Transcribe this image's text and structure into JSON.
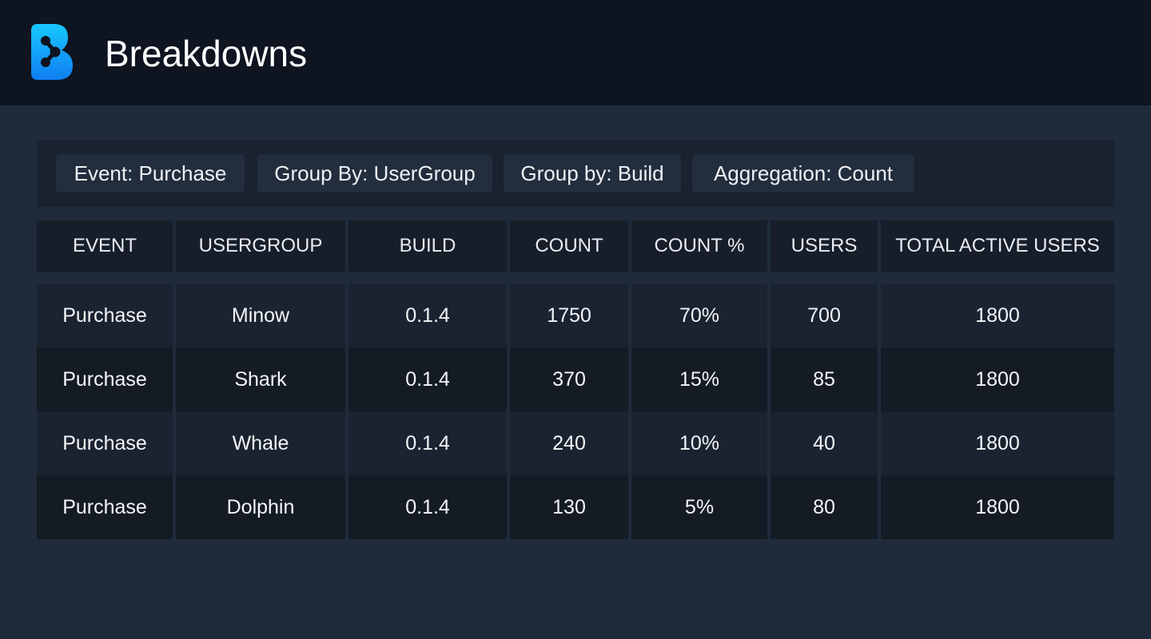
{
  "header": {
    "title": "Breakdowns",
    "logo_icon": "breakdowns-logo-icon",
    "brand_color": "#1aa7f5"
  },
  "filters": [
    {
      "label": "Event: Purchase"
    },
    {
      "label": "Group By: UserGroup"
    },
    {
      "label": "Group by: Build"
    },
    {
      "label": "Aggregation: Count"
    }
  ],
  "table": {
    "columns": [
      "EVENT",
      "USERGROUP",
      "BUILD",
      "COUNT",
      "COUNT %",
      "USERS",
      "TOTAL ACTIVE USERS"
    ],
    "rows": [
      [
        "Purchase",
        "Minow",
        "0.1.4",
        "1750",
        "70%",
        "700",
        "1800"
      ],
      [
        "Purchase",
        "Shark",
        "0.1.4",
        "370",
        "15%",
        "85",
        "1800"
      ],
      [
        "Purchase",
        "Whale",
        "0.1.4",
        "240",
        "10%",
        "40",
        "1800"
      ],
      [
        "Purchase",
        "Dolphin",
        "0.1.4",
        "130",
        "5%",
        "80",
        "1800"
      ]
    ]
  }
}
